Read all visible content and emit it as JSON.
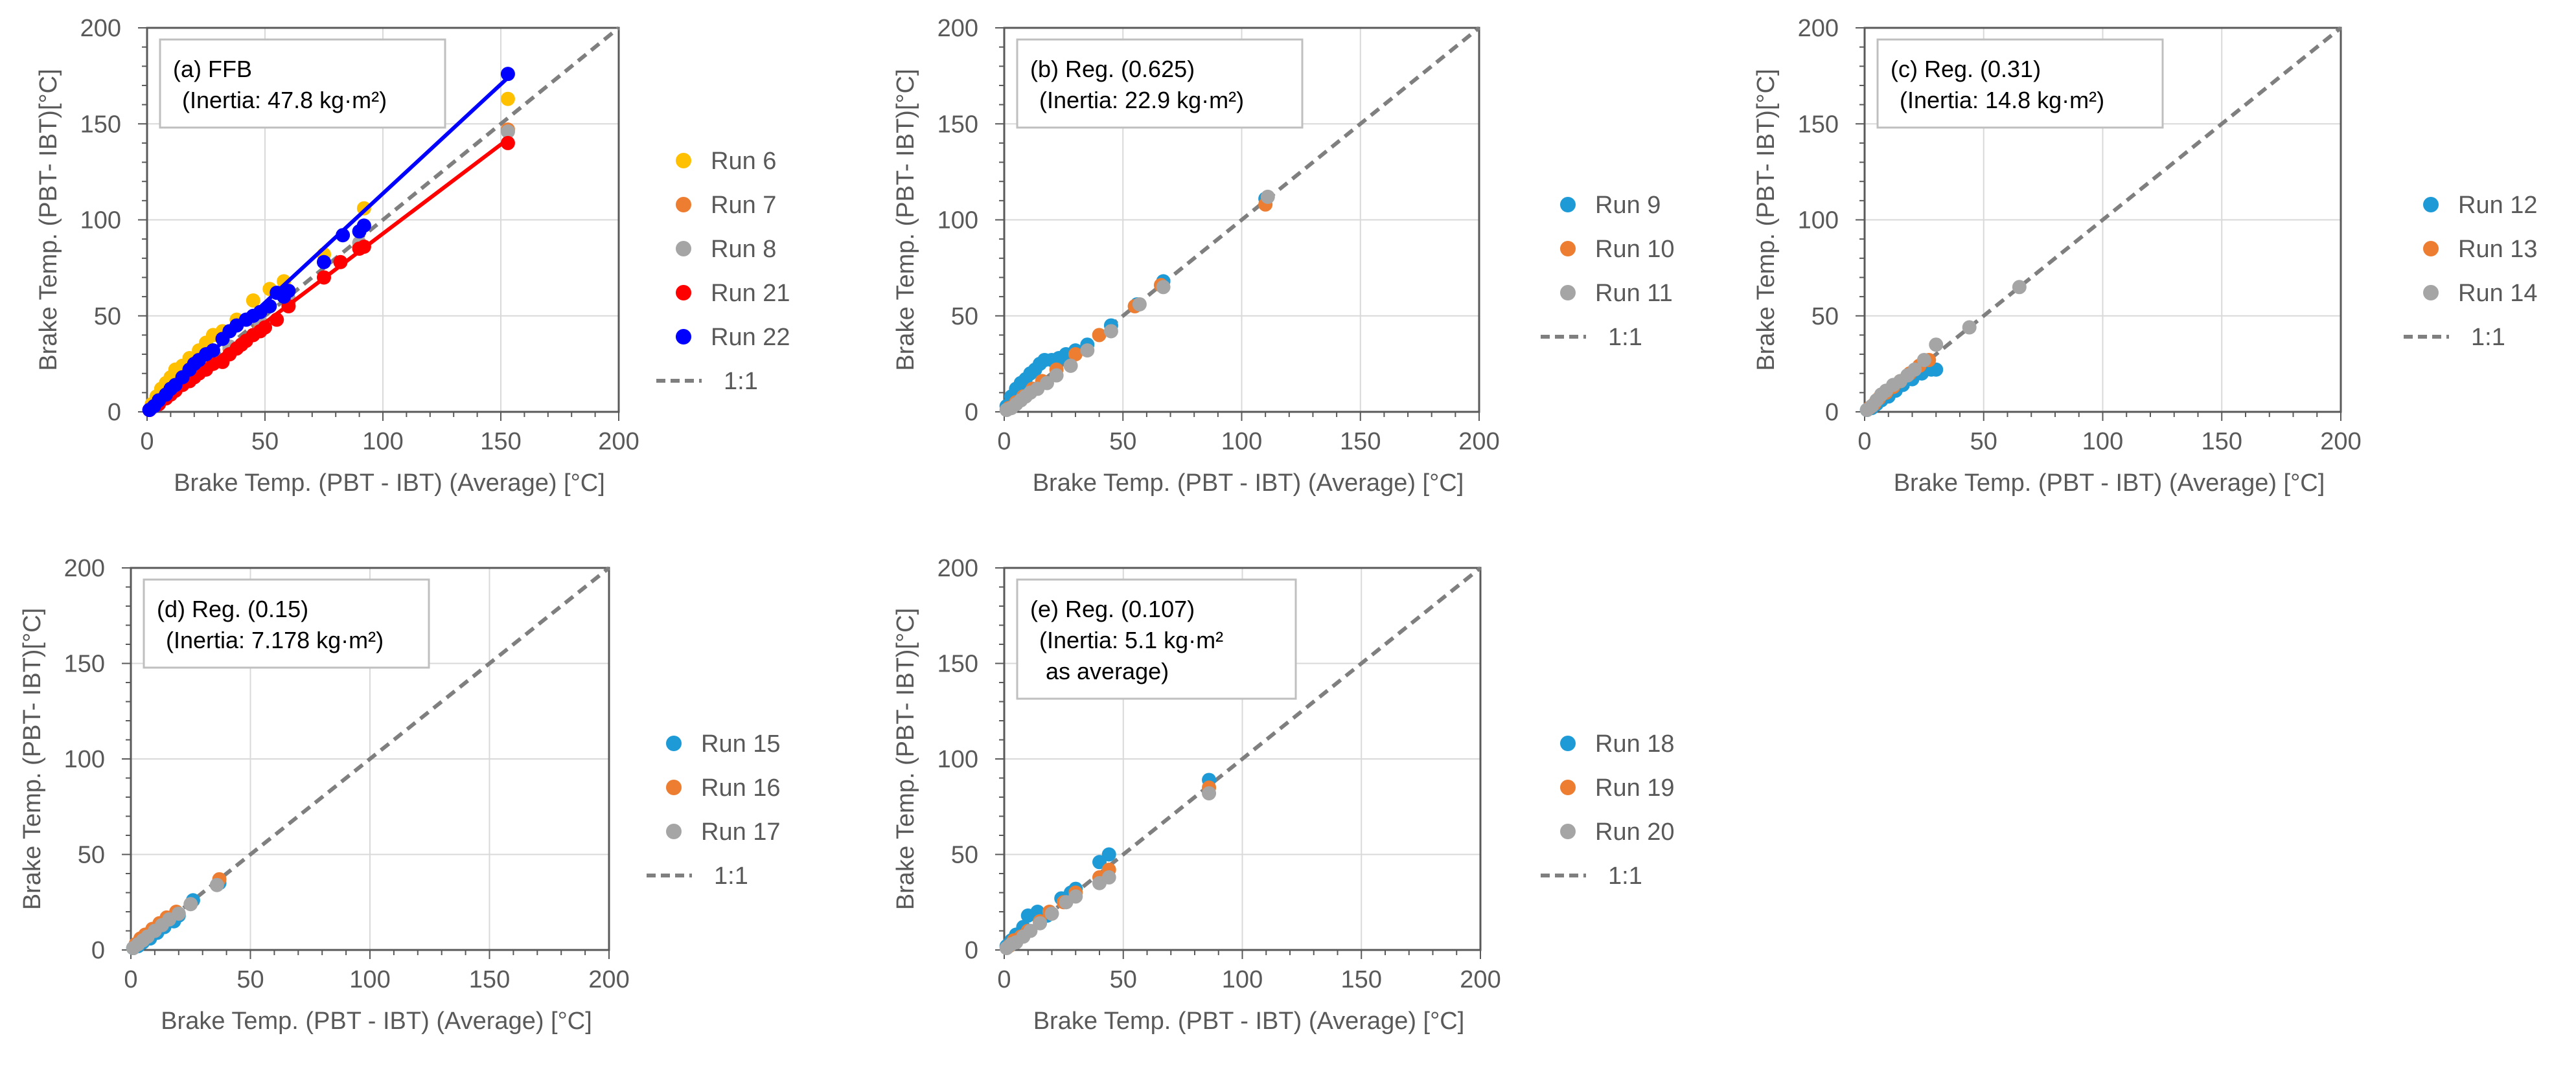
{
  "chart_data": [
    {
      "type": "scatter",
      "panel_label": "(a) FFB",
      "annotation": "(Inertia: 47.8 kg·m²)",
      "xlabel": "Brake Temp. (PBT -  IBT) (Average) [°C]",
      "ylabel": "Brake Temp. (PBT- IBT)[°C]",
      "xlim": [
        0,
        200
      ],
      "ylim": [
        0,
        200
      ],
      "xticks": [
        0,
        50,
        100,
        150,
        200
      ],
      "yticks": [
        0,
        50,
        100,
        150,
        200
      ],
      "grid": true,
      "legend_position": "right",
      "reference_line": {
        "name": "1:1",
        "color": "#7f7f7f"
      },
      "series": [
        {
          "name": "Run 6",
          "color": "#FFC000",
          "x": [
            2,
            4,
            6,
            8,
            10,
            12,
            15,
            18,
            22,
            25,
            28,
            32,
            38,
            45,
            52,
            58,
            75,
            92,
            153
          ],
          "y": [
            4,
            8,
            12,
            15,
            18,
            22,
            24,
            28,
            32,
            36,
            40,
            42,
            48,
            58,
            64,
            68,
            82,
            106,
            163
          ],
          "trend": false
        },
        {
          "name": "Run 7",
          "color": "#ED7D31",
          "x": [
            2,
            5,
            8,
            12,
            18,
            25,
            35,
            48,
            60,
            90,
            153
          ],
          "y": [
            2,
            5,
            8,
            12,
            17,
            24,
            33,
            45,
            57,
            86,
            147
          ],
          "trend": false
        },
        {
          "name": "Run 8",
          "color": "#A5A5A5",
          "x": [
            2,
            5,
            8,
            12,
            18,
            25,
            35,
            48,
            60,
            90,
            153
          ],
          "y": [
            2,
            5,
            8,
            12,
            18,
            25,
            34,
            47,
            59,
            88,
            146
          ],
          "trend": false
        },
        {
          "name": "Run 21",
          "color": "#FF0000",
          "x": [
            1,
            3,
            5,
            8,
            10,
            12,
            15,
            18,
            20,
            22,
            25,
            28,
            32,
            35,
            38,
            40,
            42,
            45,
            48,
            50,
            55,
            60,
            75,
            82,
            90,
            92,
            153
          ],
          "y": [
            1,
            3,
            4,
            7,
            9,
            11,
            14,
            16,
            18,
            20,
            22,
            25,
            26,
            30,
            33,
            35,
            37,
            40,
            42,
            44,
            48,
            55,
            70,
            78,
            85,
            86,
            140
          ],
          "trend": true,
          "trend_from": [
            0,
            0
          ],
          "trend_to": [
            153,
            142
          ]
        },
        {
          "name": "Run 22",
          "color": "#0000FF",
          "x": [
            1,
            3,
            5,
            8,
            10,
            12,
            15,
            18,
            20,
            22,
            25,
            28,
            32,
            35,
            38,
            42,
            45,
            48,
            52,
            55,
            58,
            60,
            75,
            83,
            90,
            92,
            153
          ],
          "y": [
            1,
            3,
            6,
            9,
            12,
            14,
            18,
            22,
            25,
            27,
            30,
            32,
            38,
            42,
            45,
            48,
            50,
            52,
            55,
            62,
            60,
            63,
            78,
            92,
            94,
            97,
            176
          ],
          "trend": true,
          "trend_from": [
            0,
            0
          ],
          "trend_to": [
            153,
            174
          ]
        }
      ]
    },
    {
      "type": "scatter",
      "panel_label": "(b) Reg. (0.625)",
      "annotation": "(Inertia: 22.9 kg·m²)",
      "xlabel": "Brake Temp. (PBT -  IBT) (Average) [°C]",
      "ylabel": "Brake Temp. (PBT- IBT)[°C]",
      "xlim": [
        0,
        200
      ],
      "ylim": [
        0,
        200
      ],
      "xticks": [
        0,
        50,
        100,
        150,
        200
      ],
      "yticks": [
        0,
        50,
        100,
        150,
        200
      ],
      "grid": true,
      "legend_position": "right",
      "reference_line": {
        "name": "1:1",
        "color": "#7f7f7f"
      },
      "series": [
        {
          "name": "Run 9",
          "color": "#1E9BD7",
          "x": [
            1,
            3,
            5,
            7,
            9,
            11,
            13,
            15,
            17,
            20,
            23,
            26,
            30,
            35,
            45,
            56,
            67,
            110
          ],
          "y": [
            3,
            8,
            12,
            15,
            17,
            20,
            22,
            25,
            27,
            27,
            28,
            30,
            32,
            35,
            45,
            56,
            68,
            111
          ]
        },
        {
          "name": "Run 10",
          "color": "#ED7D31",
          "x": [
            2,
            5,
            8,
            12,
            16,
            22,
            30,
            40,
            55,
            66,
            110
          ],
          "y": [
            2,
            5,
            8,
            12,
            16,
            22,
            30,
            40,
            55,
            66,
            108
          ]
        },
        {
          "name": "Run 11",
          "color": "#A5A5A5",
          "x": [
            1,
            3,
            5,
            7,
            9,
            11,
            14,
            18,
            22,
            28,
            35,
            45,
            57,
            67,
            111
          ],
          "y": [
            1,
            2,
            4,
            6,
            8,
            10,
            12,
            15,
            19,
            24,
            32,
            42,
            56,
            65,
            112
          ]
        }
      ]
    },
    {
      "type": "scatter",
      "panel_label": "(c) Reg. (0.31)",
      "annotation": "(Inertia: 14.8 kg·m²)",
      "xlabel": "Brake Temp. (PBT -  IBT) (Average) [°C]",
      "ylabel": "Brake Temp. (PBT- IBT)[°C]",
      "xlim": [
        0,
        200
      ],
      "ylim": [
        0,
        200
      ],
      "xticks": [
        0,
        50,
        100,
        150,
        200
      ],
      "yticks": [
        0,
        50,
        100,
        150,
        200
      ],
      "grid": true,
      "legend_position": "right",
      "reference_line": {
        "name": "1:1",
        "color": "#7f7f7f"
      },
      "series": [
        {
          "name": "Run 12",
          "color": "#1E9BD7",
          "x": [
            1,
            3,
            5,
            7,
            10,
            13,
            16,
            20,
            24,
            28,
            30
          ],
          "y": [
            1,
            2,
            4,
            6,
            8,
            11,
            14,
            17,
            20,
            22,
            22
          ]
        },
        {
          "name": "Run 13",
          "color": "#ED7D31",
          "x": [
            2,
            4,
            6,
            9,
            12,
            15,
            19,
            23,
            27
          ],
          "y": [
            2,
            4,
            7,
            10,
            13,
            16,
            20,
            24,
            27
          ]
        },
        {
          "name": "Run 14",
          "color": "#A5A5A5",
          "x": [
            1,
            3,
            5,
            7,
            9,
            12,
            15,
            18,
            21,
            25,
            30,
            44,
            65
          ],
          "y": [
            1,
            3,
            6,
            9,
            11,
            14,
            16,
            19,
            22,
            27,
            35,
            44,
            65
          ]
        }
      ]
    },
    {
      "type": "scatter",
      "panel_label": "(d) Reg. (0.15)",
      "annotation": "(Inertia: 7.178 kg·m²)",
      "xlabel": "Brake Temp. (PBT -  IBT) (Average) [°C]",
      "ylabel": "Brake Temp. (PBT- IBT)[°C]",
      "xlim": [
        0,
        200
      ],
      "ylim": [
        0,
        200
      ],
      "xticks": [
        0,
        50,
        100,
        150,
        200
      ],
      "yticks": [
        0,
        50,
        100,
        150,
        200
      ],
      "grid": true,
      "legend_position": "right",
      "reference_line": {
        "name": "1:1",
        "color": "#7f7f7f"
      },
      "series": [
        {
          "name": "Run 15",
          "color": "#1E9BD7",
          "x": [
            1,
            3,
            5,
            8,
            11,
            14,
            18,
            20,
            26,
            37
          ],
          "y": [
            1,
            2,
            4,
            6,
            9,
            12,
            15,
            18,
            26,
            35
          ]
        },
        {
          "name": "Run 16",
          "color": "#ED7D31",
          "x": [
            2,
            4,
            6,
            9,
            12,
            15,
            19,
            37
          ],
          "y": [
            3,
            6,
            8,
            11,
            14,
            17,
            20,
            37
          ]
        },
        {
          "name": "Run 17",
          "color": "#A5A5A5",
          "x": [
            1,
            3,
            5,
            7,
            10,
            13,
            16,
            20,
            25,
            36
          ],
          "y": [
            1,
            3,
            5,
            7,
            10,
            13,
            16,
            19,
            24,
            34
          ]
        }
      ]
    },
    {
      "type": "scatter",
      "panel_label": "(e) Reg. (0.107)",
      "annotation": "(Inertia: 5.1 kg·m²\nas average)",
      "xlabel": "Brake Temp. (PBT -  IBT) (Average) [°C]",
      "ylabel": "Brake Temp. (PBT- IBT)[°C]",
      "xlim": [
        0,
        200
      ],
      "ylim": [
        0,
        200
      ],
      "xticks": [
        0,
        50,
        100,
        150,
        200
      ],
      "yticks": [
        0,
        50,
        100,
        150,
        200
      ],
      "grid": true,
      "legend_position": "right",
      "reference_line": {
        "name": "1:1",
        "color": "#7f7f7f"
      },
      "series": [
        {
          "name": "Run 18",
          "color": "#1E9BD7",
          "x": [
            1,
            3,
            5,
            8,
            10,
            14,
            18,
            24,
            28,
            30,
            40,
            44,
            86
          ],
          "y": [
            2,
            5,
            8,
            12,
            18,
            20,
            18,
            27,
            30,
            32,
            46,
            50,
            89
          ]
        },
        {
          "name": "Run 19",
          "color": "#ED7D31",
          "x": [
            2,
            4,
            7,
            10,
            15,
            19,
            25,
            30,
            40,
            44,
            86
          ],
          "y": [
            2,
            5,
            7,
            10,
            15,
            20,
            25,
            30,
            38,
            42,
            85
          ]
        },
        {
          "name": "Run 20",
          "color": "#A5A5A5",
          "x": [
            1,
            3,
            5,
            8,
            11,
            15,
            20,
            26,
            30,
            40,
            44,
            86
          ],
          "y": [
            1,
            3,
            4,
            7,
            10,
            14,
            19,
            25,
            28,
            35,
            38,
            82
          ]
        }
      ]
    }
  ]
}
